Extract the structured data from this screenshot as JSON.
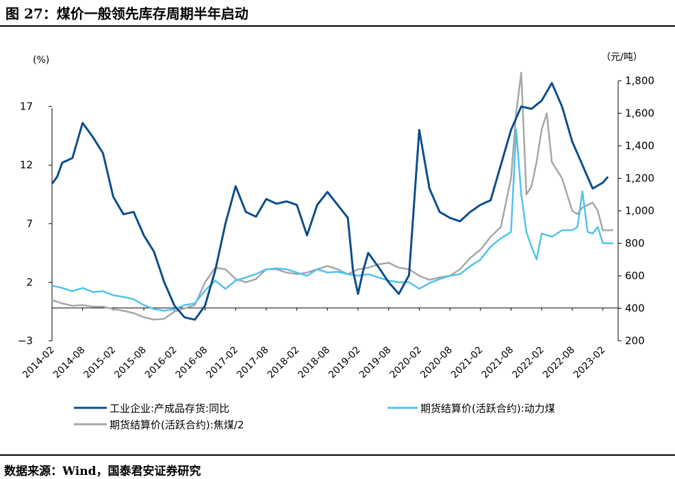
{
  "figure": {
    "title": "图 27：煤价一般领先库存周期半年启动",
    "source": "数据来源：Wind，国泰君安证券研究"
  },
  "chart_data": {
    "type": "line",
    "left_axis_unit": "(%)",
    "right_axis_unit": "（元/吨）",
    "left_ticks": [
      -3,
      2,
      7,
      12,
      17
    ],
    "right_ticks": [
      200,
      400,
      600,
      800,
      1000,
      1200,
      1400,
      1600,
      1800
    ],
    "left_tick_labels": [
      "−3",
      "2",
      "7",
      "12",
      "17"
    ],
    "right_tick_labels": [
      "200",
      "400",
      "600",
      "800",
      "1,000",
      "1,200",
      "1,400",
      "1,600",
      "1,800"
    ],
    "ylim_left": [
      -3,
      19.2
    ],
    "ylim_right": [
      200,
      1800
    ],
    "x_start": "2014-02",
    "x_end": "2023-05",
    "x_tick_labels": [
      "2014-02",
      "2014-08",
      "2015-02",
      "2015-08",
      "2016-02",
      "2016-08",
      "2017-02",
      "2017-08",
      "2018-02",
      "2018-08",
      "2019-02",
      "2019-08",
      "2020-02",
      "2020-08",
      "2021-02",
      "2021-08",
      "2022-02",
      "2022-08",
      "2023-02"
    ],
    "series": [
      {
        "name": "工业企业:产成品存货:同比",
        "axis": "left",
        "color": "#0b4d8c",
        "points": [
          [
            "2014-02",
            10.4
          ],
          [
            "2014-03",
            11.0
          ],
          [
            "2014-04",
            12.2
          ],
          [
            "2014-06",
            12.6
          ],
          [
            "2014-08",
            15.6
          ],
          [
            "2014-10",
            14.4
          ],
          [
            "2014-12",
            13.0
          ],
          [
            "2015-02",
            9.3
          ],
          [
            "2015-04",
            7.8
          ],
          [
            "2015-06",
            8.0
          ],
          [
            "2015-08",
            6.0
          ],
          [
            "2015-10",
            4.6
          ],
          [
            "2015-12",
            2.0
          ],
          [
            "2016-02",
            0.0
          ],
          [
            "2016-04",
            -1.0
          ],
          [
            "2016-06",
            -1.2
          ],
          [
            "2016-08",
            0.0
          ],
          [
            "2016-10",
            3.0
          ],
          [
            "2016-12",
            7.0
          ],
          [
            "2017-02",
            10.2
          ],
          [
            "2017-04",
            8.0
          ],
          [
            "2017-06",
            7.6
          ],
          [
            "2017-08",
            9.1
          ],
          [
            "2017-10",
            8.7
          ],
          [
            "2017-12",
            8.9
          ],
          [
            "2018-02",
            8.6
          ],
          [
            "2018-04",
            6.0
          ],
          [
            "2018-06",
            8.6
          ],
          [
            "2018-08",
            9.7
          ],
          [
            "2018-10",
            8.6
          ],
          [
            "2018-12",
            7.5
          ],
          [
            "2019-01",
            3.0
          ],
          [
            "2019-02",
            1.0
          ],
          [
            "2019-03",
            3.0
          ],
          [
            "2019-04",
            4.5
          ],
          [
            "2019-06",
            3.3
          ],
          [
            "2019-08",
            2.0
          ],
          [
            "2019-10",
            1.0
          ],
          [
            "2019-12",
            2.6
          ],
          [
            "2020-02",
            15.0
          ],
          [
            "2020-04",
            10.0
          ],
          [
            "2020-06",
            8.0
          ],
          [
            "2020-08",
            7.5
          ],
          [
            "2020-10",
            7.2
          ],
          [
            "2020-12",
            8.0
          ],
          [
            "2021-02",
            8.6
          ],
          [
            "2021-04",
            9.0
          ],
          [
            "2021-06",
            12.0
          ],
          [
            "2021-08",
            15.0
          ],
          [
            "2021-10",
            17.0
          ],
          [
            "2021-12",
            16.8
          ],
          [
            "2022-02",
            17.5
          ],
          [
            "2022-04",
            19.0
          ],
          [
            "2022-06",
            17.0
          ],
          [
            "2022-08",
            14.0
          ],
          [
            "2022-10",
            12.0
          ],
          [
            "2022-12",
            10.0
          ],
          [
            "2023-02",
            10.5
          ],
          [
            "2023-03",
            11.0
          ]
        ]
      },
      {
        "name": "期货结算价(活跃合约):动力煤",
        "axis": "right",
        "color": "#4fc3ea",
        "points": [
          [
            "2014-02",
            540
          ],
          [
            "2014-04",
            525
          ],
          [
            "2014-06",
            505
          ],
          [
            "2014-08",
            525
          ],
          [
            "2014-10",
            500
          ],
          [
            "2014-12",
            505
          ],
          [
            "2015-02",
            480
          ],
          [
            "2015-04",
            470
          ],
          [
            "2015-06",
            455
          ],
          [
            "2015-08",
            420
          ],
          [
            "2015-10",
            395
          ],
          [
            "2015-12",
            385
          ],
          [
            "2016-02",
            395
          ],
          [
            "2016-04",
            420
          ],
          [
            "2016-06",
            430
          ],
          [
            "2016-08",
            510
          ],
          [
            "2016-10",
            570
          ],
          [
            "2016-12",
            520
          ],
          [
            "2017-02",
            570
          ],
          [
            "2017-04",
            590
          ],
          [
            "2017-06",
            610
          ],
          [
            "2017-08",
            640
          ],
          [
            "2017-10",
            645
          ],
          [
            "2017-12",
            640
          ],
          [
            "2018-02",
            620
          ],
          [
            "2018-04",
            600
          ],
          [
            "2018-06",
            640
          ],
          [
            "2018-08",
            620
          ],
          [
            "2018-10",
            625
          ],
          [
            "2018-12",
            610
          ],
          [
            "2019-02",
            600
          ],
          [
            "2019-04",
            610
          ],
          [
            "2019-06",
            590
          ],
          [
            "2019-08",
            570
          ],
          [
            "2019-10",
            560
          ],
          [
            "2019-12",
            560
          ],
          [
            "2020-02",
            520
          ],
          [
            "2020-04",
            555
          ],
          [
            "2020-06",
            580
          ],
          [
            "2020-08",
            600
          ],
          [
            "2020-10",
            610
          ],
          [
            "2020-12",
            660
          ],
          [
            "2021-02",
            700
          ],
          [
            "2021-04",
            780
          ],
          [
            "2021-06",
            830
          ],
          [
            "2021-08",
            870
          ],
          [
            "2021-09",
            1500
          ],
          [
            "2021-10",
            1100
          ],
          [
            "2021-11",
            870
          ],
          [
            "2021-12",
            780
          ],
          [
            "2022-01",
            700
          ],
          [
            "2022-02",
            860
          ],
          [
            "2022-04",
            840
          ],
          [
            "2022-06",
            880
          ],
          [
            "2022-08",
            880
          ],
          [
            "2022-09",
            900
          ],
          [
            "2022-10",
            1120
          ],
          [
            "2022-11",
            870
          ],
          [
            "2022-12",
            860
          ],
          [
            "2023-01",
            900
          ],
          [
            "2023-02",
            800
          ],
          [
            "2023-04",
            800
          ]
        ]
      },
      {
        "name": "期货结算价(活跃合约):焦煤/2",
        "axis": "right",
        "color": "#a6a6a6",
        "points": [
          [
            "2014-02",
            450
          ],
          [
            "2014-04",
            430
          ],
          [
            "2014-06",
            415
          ],
          [
            "2014-08",
            420
          ],
          [
            "2014-10",
            410
          ],
          [
            "2014-12",
            410
          ],
          [
            "2015-02",
            395
          ],
          [
            "2015-04",
            385
          ],
          [
            "2015-06",
            370
          ],
          [
            "2015-08",
            345
          ],
          [
            "2015-10",
            330
          ],
          [
            "2015-12",
            335
          ],
          [
            "2016-02",
            380
          ],
          [
            "2016-04",
            400
          ],
          [
            "2016-06",
            420
          ],
          [
            "2016-08",
            560
          ],
          [
            "2016-10",
            650
          ],
          [
            "2016-12",
            640
          ],
          [
            "2017-02",
            580
          ],
          [
            "2017-04",
            560
          ],
          [
            "2017-06",
            580
          ],
          [
            "2017-08",
            640
          ],
          [
            "2017-10",
            640
          ],
          [
            "2017-12",
            620
          ],
          [
            "2018-02",
            610
          ],
          [
            "2018-04",
            620
          ],
          [
            "2018-06",
            640
          ],
          [
            "2018-08",
            660
          ],
          [
            "2018-10",
            640
          ],
          [
            "2018-12",
            610
          ],
          [
            "2019-02",
            640
          ],
          [
            "2019-04",
            650
          ],
          [
            "2019-06",
            670
          ],
          [
            "2019-08",
            680
          ],
          [
            "2019-10",
            650
          ],
          [
            "2019-12",
            640
          ],
          [
            "2020-02",
            600
          ],
          [
            "2020-04",
            575
          ],
          [
            "2020-06",
            590
          ],
          [
            "2020-08",
            600
          ],
          [
            "2020-10",
            640
          ],
          [
            "2020-12",
            710
          ],
          [
            "2021-02",
            760
          ],
          [
            "2021-04",
            840
          ],
          [
            "2021-06",
            900
          ],
          [
            "2021-08",
            1200
          ],
          [
            "2021-09",
            1600
          ],
          [
            "2021-10",
            1850
          ],
          [
            "2021-11",
            1100
          ],
          [
            "2021-12",
            1150
          ],
          [
            "2022-01",
            1300
          ],
          [
            "2022-02",
            1500
          ],
          [
            "2022-03",
            1600
          ],
          [
            "2022-04",
            1300
          ],
          [
            "2022-06",
            1200
          ],
          [
            "2022-08",
            1000
          ],
          [
            "2022-09",
            980
          ],
          [
            "2022-10",
            1020
          ],
          [
            "2022-12",
            1050
          ],
          [
            "2023-01",
            1000
          ],
          [
            "2023-02",
            880
          ],
          [
            "2023-04",
            880
          ]
        ]
      }
    ]
  }
}
